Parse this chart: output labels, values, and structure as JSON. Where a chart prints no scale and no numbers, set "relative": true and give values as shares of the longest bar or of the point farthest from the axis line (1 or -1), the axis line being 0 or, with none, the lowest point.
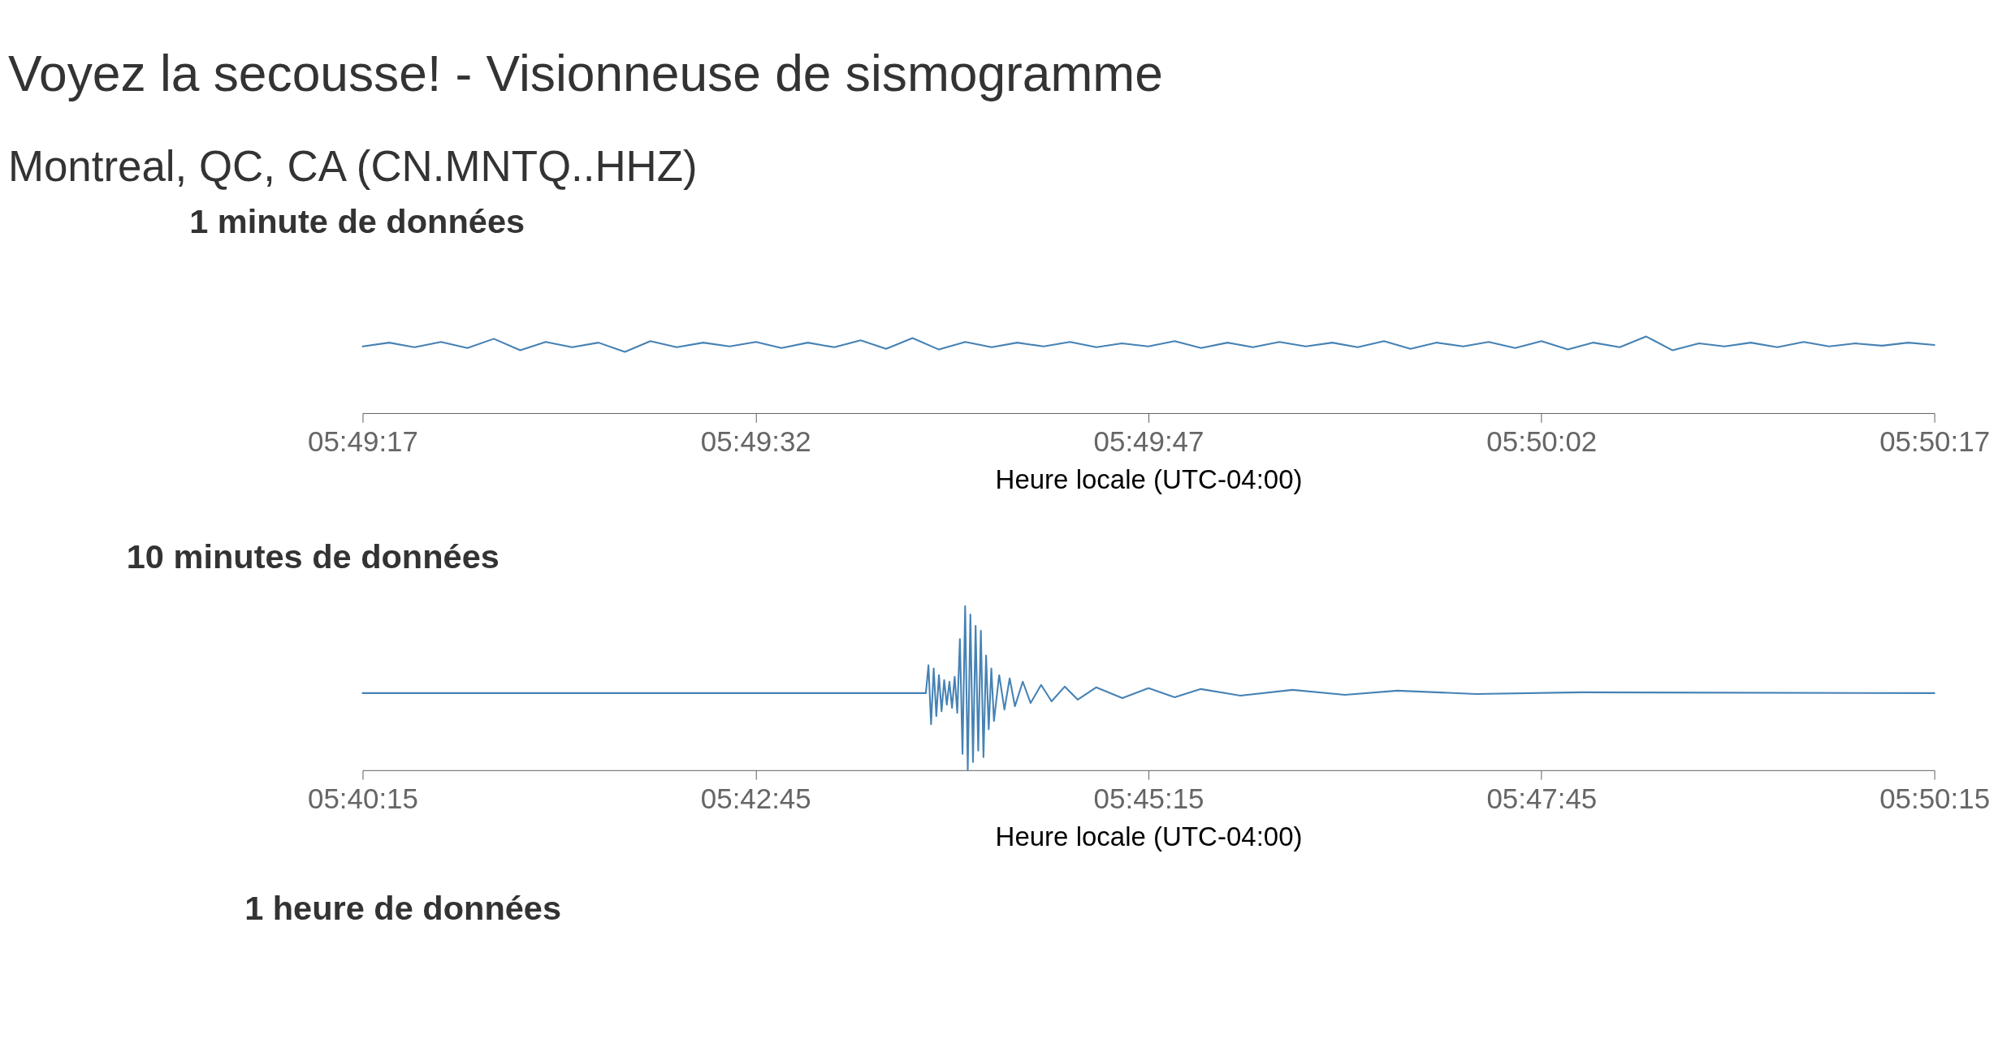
{
  "chart_data": [
    {
      "type": "line",
      "title": "Voyez la secousse! - Visionneuse de sismogramme",
      "subtitle": "Montreal, QC, CA (CN.MNTQ..HHZ)",
      "annotations": [
        "1 minute de données"
      ],
      "xlabel": "Heure locale (UTC-04:00)",
      "relative": true,
      "xlim": [
        5.821389,
        5.838056
      ],
      "xticks": [
        {
          "value": 5.821389,
          "label": "05:49:17"
        },
        {
          "value": 5.825556,
          "label": "05:49:32"
        },
        {
          "value": 5.829722,
          "label": "05:49:47"
        },
        {
          "value": 5.833889,
          "label": "05:50:02"
        },
        {
          "value": 5.838056,
          "label": "05:50:17"
        }
      ],
      "series": [
        {
          "color": "#4682b4",
          "x": [
            5.82139,
            5.82167,
            5.82194,
            5.82222,
            5.8225,
            5.82278,
            5.82306,
            5.82333,
            5.82361,
            5.82389,
            5.82417,
            5.82444,
            5.82472,
            5.825,
            5.82528,
            5.82556,
            5.82583,
            5.82611,
            5.82639,
            5.82667,
            5.82694,
            5.82722,
            5.8275,
            5.82778,
            5.82806,
            5.82833,
            5.82861,
            5.82889,
            5.82917,
            5.82944,
            5.82972,
            5.83,
            5.83028,
            5.83056,
            5.83083,
            5.83111,
            5.83139,
            5.83167,
            5.83194,
            5.83222,
            5.8325,
            5.83278,
            5.83306,
            5.83333,
            5.83361,
            5.83389,
            5.83417,
            5.83444,
            5.83472,
            5.835,
            5.83528,
            5.83556,
            5.83583,
            5.83611,
            5.83639,
            5.83667,
            5.83694,
            5.83722,
            5.8375,
            5.83778,
            5.838056
          ],
          "values": [
            0.87,
            0.92,
            0.86,
            0.93,
            0.85,
            0.97,
            0.82,
            0.93,
            0.86,
            0.92,
            0.8,
            0.94,
            0.86,
            0.92,
            0.87,
            0.93,
            0.85,
            0.92,
            0.86,
            0.95,
            0.84,
            0.98,
            0.83,
            0.93,
            0.86,
            0.92,
            0.87,
            0.93,
            0.86,
            0.91,
            0.87,
            0.94,
            0.85,
            0.92,
            0.86,
            0.93,
            0.87,
            0.92,
            0.86,
            0.94,
            0.84,
            0.92,
            0.87,
            0.93,
            0.85,
            0.94,
            0.83,
            0.92,
            0.86,
            1.0,
            0.82,
            0.91,
            0.87,
            0.92,
            0.86,
            0.93,
            0.87,
            0.91,
            0.88,
            0.92,
            0.89
          ]
        }
      ]
    },
    {
      "type": "line",
      "title": "10 minutes de données",
      "annotations": [
        "1 heure de données"
      ],
      "xlabel": "Heure locale (UTC-04:00)",
      "relative": true,
      "xlim": [
        5.670833,
        5.8375
      ],
      "xticks": [
        {
          "value": 5.670833,
          "label": "05:40:15"
        },
        {
          "value": 5.7125,
          "label": "05:42:45"
        },
        {
          "value": 5.754167,
          "label": "05:45:15"
        },
        {
          "value": 5.795833,
          "label": "05:47:45"
        },
        {
          "value": 5.8375,
          "label": "05:50:15"
        }
      ],
      "series": [
        {
          "color": "#4682b4",
          "x": [
            5.670833,
            5.730556,
            5.730833,
            5.731111,
            5.731389,
            5.731667,
            5.731944,
            5.732222,
            5.7325,
            5.732778,
            5.733056,
            5.733333,
            5.733611,
            5.733889,
            5.734167,
            5.734444,
            5.734722,
            5.735,
            5.735278,
            5.735556,
            5.735833,
            5.736111,
            5.736389,
            5.736667,
            5.736944,
            5.737222,
            5.7375,
            5.737778,
            5.738333,
            5.738889,
            5.739444,
            5.74,
            5.740833,
            5.741667,
            5.742778,
            5.743889,
            5.745278,
            5.746667,
            5.748611,
            5.751389,
            5.754167,
            5.756944,
            5.759722,
            5.763889,
            5.769444,
            5.775,
            5.780556,
            5.788889,
            5.8,
            5.8375
          ],
          "values": [
            0.47,
            0.47,
            0.64,
            0.28,
            0.62,
            0.33,
            0.58,
            0.36,
            0.55,
            0.4,
            0.54,
            0.38,
            0.57,
            0.35,
            0.8,
            0.1,
            1.0,
            0.0,
            0.95,
            0.05,
            0.88,
            0.12,
            0.85,
            0.08,
            0.7,
            0.25,
            0.62,
            0.3,
            0.58,
            0.37,
            0.56,
            0.39,
            0.54,
            0.41,
            0.52,
            0.42,
            0.51,
            0.43,
            0.505,
            0.44,
            0.5,
            0.445,
            0.495,
            0.455,
            0.49,
            0.46,
            0.485,
            0.465,
            0.475,
            0.47
          ]
        }
      ]
    }
  ]
}
